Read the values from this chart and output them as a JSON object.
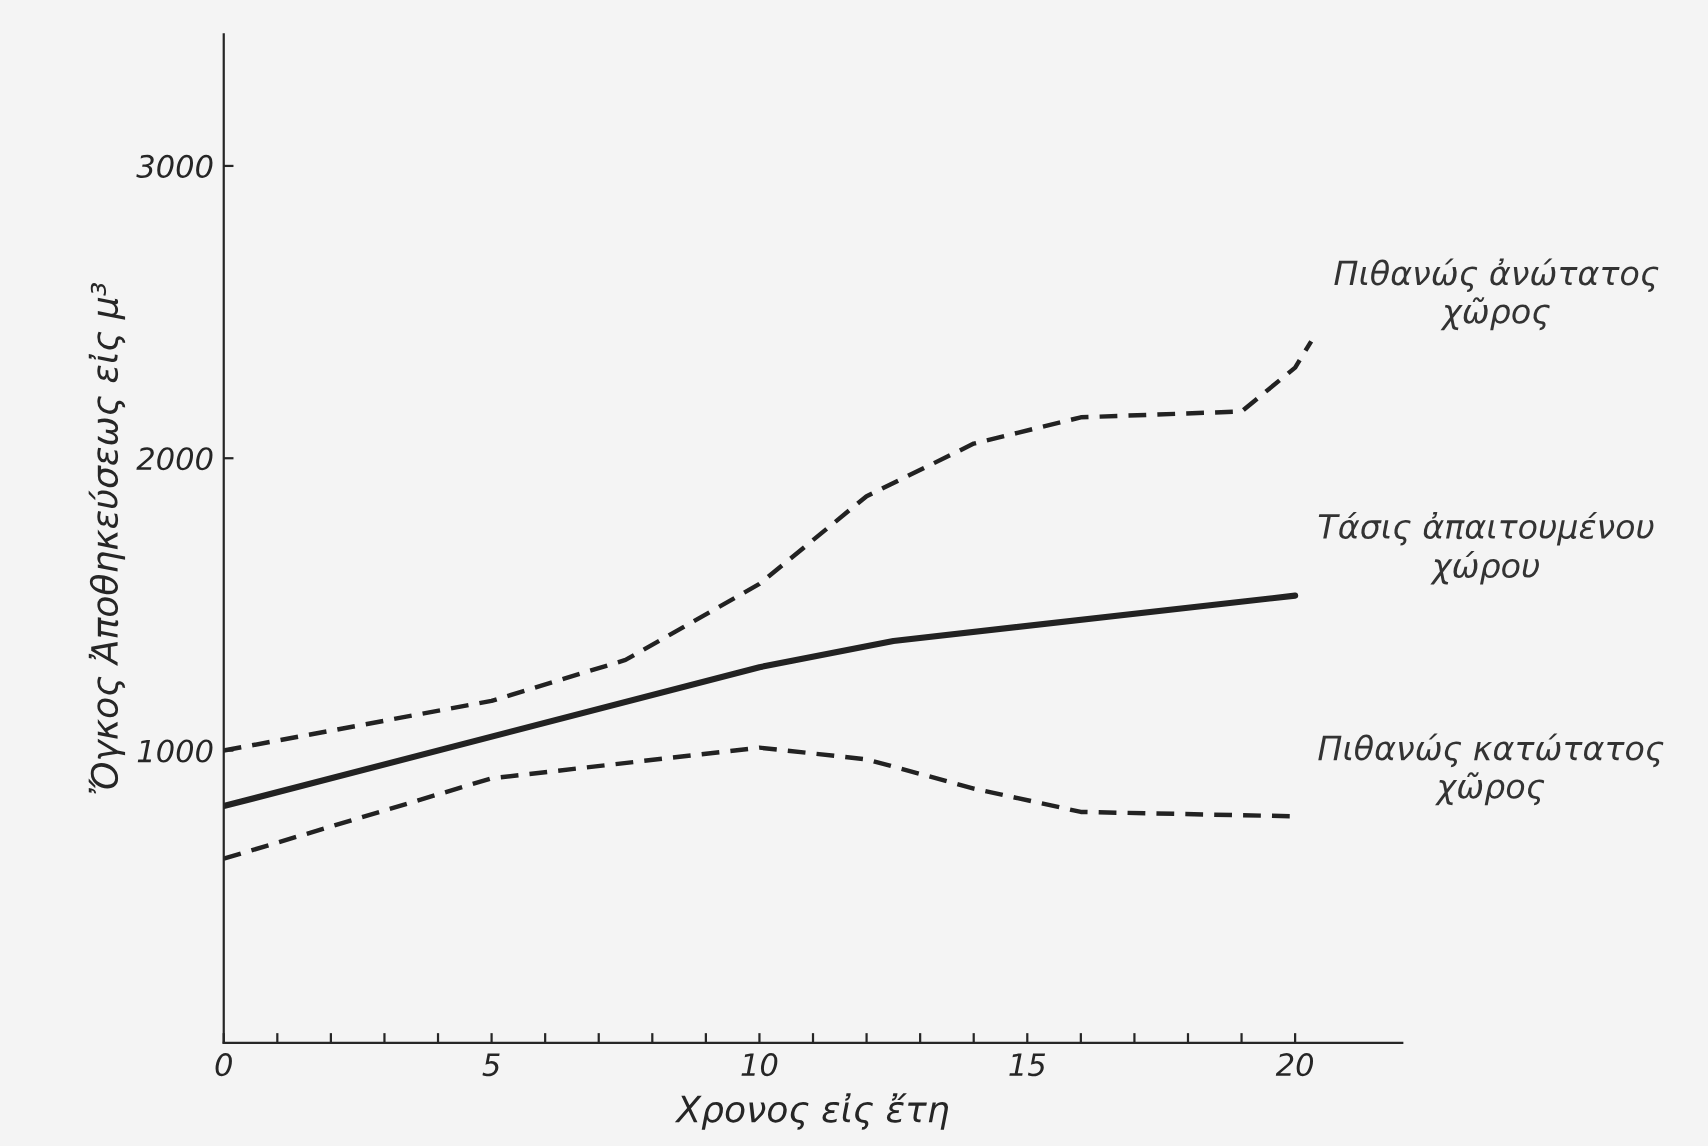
{
  "chart_data": {
    "type": "line",
    "xlabel": "Χρονος εἰς ἔτη",
    "ylabel": "Ὄγκος Ἀποθηκεύσεως εἰς μ³",
    "xlim": [
      0,
      22
    ],
    "ylim": [
      0,
      3450
    ],
    "xticks": [
      0,
      {
        "value": 1,
        "label": null
      },
      {
        "value": 2,
        "label": null
      },
      {
        "value": 3,
        "label": null
      },
      {
        "value": 4,
        "label": null
      },
      5,
      {
        "value": 6,
        "label": null
      },
      {
        "value": 7,
        "label": null
      },
      {
        "value": 8,
        "label": null
      },
      {
        "value": 9,
        "label": null
      },
      10,
      {
        "value": 11,
        "label": null
      },
      {
        "value": 12,
        "label": null
      },
      {
        "value": 13,
        "label": null
      },
      {
        "value": 14,
        "label": null
      },
      15,
      {
        "value": 16,
        "label": null
      },
      {
        "value": 17,
        "label": null
      },
      {
        "value": 18,
        "label": null
      },
      {
        "value": 19,
        "label": null
      },
      20
    ],
    "yticks": [
      1000,
      2000,
      3000
    ],
    "grid": false,
    "legend": false,
    "marker": "none",
    "series": [
      {
        "name": "Πιθανώς ἀνώτατος\nχῶρος",
        "color": "#222222",
        "line_style": "dashed",
        "x": [
          0,
          5,
          7.5,
          10,
          12,
          14,
          16,
          19,
          20,
          20.3
        ],
        "values": [
          1000,
          1170,
          1310,
          1570,
          1870,
          2050,
          2140,
          2160,
          2310,
          2400
        ]
      },
      {
        "name": "Τάσις ἀπαιτουμένου\nχώρου",
        "color": "#222222",
        "line_style": "solid",
        "x": [
          0,
          10,
          12.5,
          20
        ],
        "values": [
          810,
          1285,
          1375,
          1530
        ]
      },
      {
        "name": "Πιθανώς κατώτατος\nχῶρος",
        "color": "#222222",
        "line_style": "dashed",
        "x": [
          0,
          5,
          10,
          12,
          14,
          16,
          20
        ],
        "values": [
          630,
          905,
          1010,
          970,
          870,
          790,
          775
        ]
      }
    ]
  }
}
